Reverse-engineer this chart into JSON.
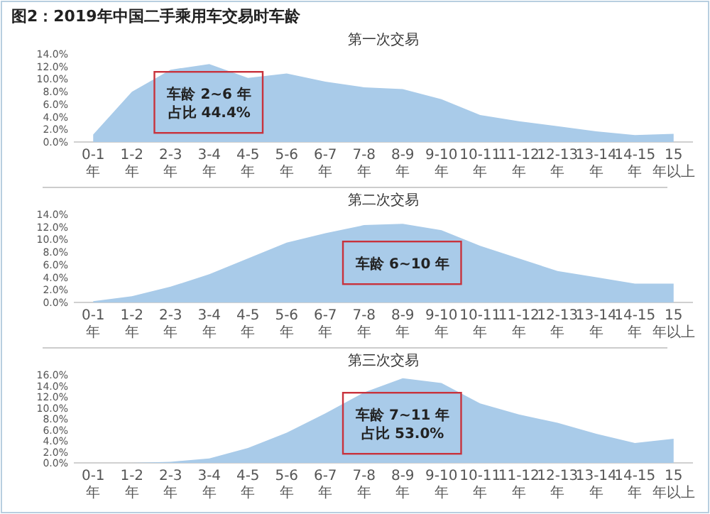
{
  "chart_data": [
    {
      "type": "area",
      "title": "图2：2019年中国二手乘用车交易时车龄",
      "subtitle": "第一次交易",
      "categories": [
        "0-1年",
        "1-2年",
        "2-3年",
        "3-4年",
        "4-5年",
        "5-6年",
        "6-7年",
        "7-8年",
        "8-9年",
        "9-10年",
        "10-11年",
        "11-12年",
        "12-13年",
        "13-14年",
        "14-15年",
        "15年以上"
      ],
      "series": [
        {
          "color": "#a9cbe9",
          "values": [
            1.2,
            8.0,
            11.5,
            12.4,
            10.2,
            10.9,
            9.6,
            8.7,
            8.4,
            6.8,
            4.3,
            3.3,
            2.5,
            1.7,
            1.1,
            1.3
          ]
        }
      ],
      "ylim": [
        0,
        14
      ],
      "yticks": [
        {
          "value": 0,
          "label": "0.0%"
        },
        {
          "value": 2,
          "label": "2.0%"
        },
        {
          "value": 4,
          "label": "4.0%"
        },
        {
          "value": 6,
          "label": "6.0%"
        },
        {
          "value": 8,
          "label": "8.0%"
        },
        {
          "value": 10,
          "label": "10.0%"
        },
        {
          "value": 12,
          "label": "12.0%"
        },
        {
          "value": 14,
          "label": "14.0%"
        }
      ],
      "annotations": [
        "车龄 2~6 年",
        "占比 44.4%"
      ]
    },
    {
      "type": "area",
      "title": "第二次交易",
      "categories": [
        "0-1年",
        "1-2年",
        "2-3年",
        "3-4年",
        "4-5年",
        "5-6年",
        "6-7年",
        "7-8年",
        "8-9年",
        "9-10年",
        "10-11年",
        "11-12年",
        "12-13年",
        "13-14年",
        "14-15年",
        "15年以上"
      ],
      "series": [
        {
          "color": "#a9cbe9",
          "values": [
            0.2,
            1.0,
            2.5,
            4.5,
            7.0,
            9.5,
            11.0,
            12.3,
            12.5,
            11.5,
            9.0,
            7.0,
            5.0,
            4.0,
            3.0,
            3.0
          ]
        }
      ],
      "ylim": [
        0,
        14
      ],
      "yticks": [
        {
          "value": 0,
          "label": "0.0%"
        },
        {
          "value": 2,
          "label": "2.0%"
        },
        {
          "value": 4,
          "label": "4.0%"
        },
        {
          "value": 6,
          "label": "6.0%"
        },
        {
          "value": 8,
          "label": "8.0%"
        },
        {
          "value": 10,
          "label": "10.0%"
        },
        {
          "value": 12,
          "label": "12.0%"
        },
        {
          "value": 14,
          "label": "14.0%"
        }
      ],
      "annotations": [
        "车龄 6~10 年"
      ]
    },
    {
      "type": "area",
      "title": "第三次交易",
      "categories": [
        "0-1年",
        "1-2年",
        "2-3年",
        "3-4年",
        "4-5年",
        "5-6年",
        "6-7年",
        "7-8年",
        "8-9年",
        "9-10年",
        "10-11年",
        "11-12年",
        "12-13年",
        "13-14年",
        "14-15年",
        "15年以上"
      ],
      "series": [
        {
          "color": "#a9cbe9",
          "values": [
            0,
            0,
            0.2,
            0.8,
            2.7,
            5.5,
            9.0,
            12.8,
            15.4,
            14.5,
            10.8,
            8.8,
            7.3,
            5.3,
            3.6,
            4.4
          ]
        }
      ],
      "ylim": [
        0,
        16
      ],
      "yticks": [
        {
          "value": 0,
          "label": "0.0%"
        },
        {
          "value": 2,
          "label": "2.0%"
        },
        {
          "value": 4,
          "label": "4.0%"
        },
        {
          "value": 6,
          "label": "6.0%"
        },
        {
          "value": 8,
          "label": "8.0%"
        },
        {
          "value": 10,
          "label": "10.0%"
        },
        {
          "value": 12,
          "label": "12.0%"
        },
        {
          "value": 14,
          "label": "14.0%"
        },
        {
          "value": 16,
          "label": "16.0%"
        }
      ],
      "annotations": [
        "车龄 7~11 年",
        "占比 53.0%"
      ]
    }
  ]
}
